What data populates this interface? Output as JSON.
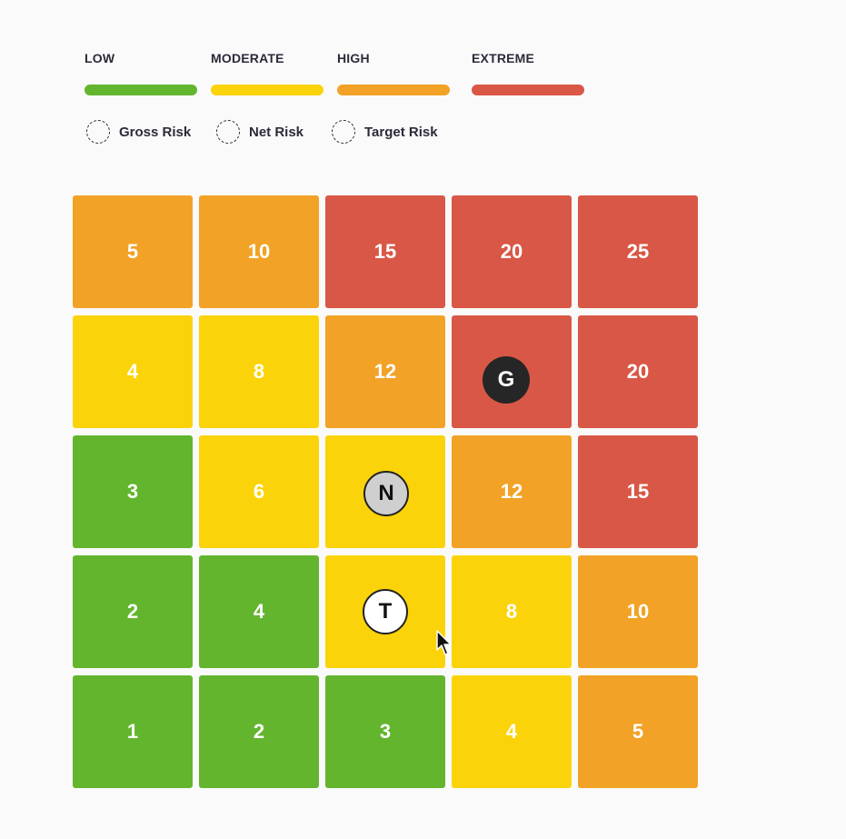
{
  "legend": {
    "levels": [
      {
        "label": "LOW",
        "color": "#63b52e"
      },
      {
        "label": "MODERATE",
        "color": "#fbd30a"
      },
      {
        "label": "HIGH",
        "color": "#f2a226"
      },
      {
        "label": "EXTREME",
        "color": "#d95746"
      }
    ],
    "markers": [
      {
        "label": "Gross Risk",
        "icon": "dashed-circle-icon"
      },
      {
        "label": "Net Risk",
        "icon": "dashed-circle-icon"
      },
      {
        "label": "Target Risk",
        "icon": "dashed-circle-icon"
      }
    ]
  },
  "matrix": {
    "rows": [
      [
        {
          "score": "5",
          "level": "high"
        },
        {
          "score": "10",
          "level": "high"
        },
        {
          "score": "15",
          "level": "extreme"
        },
        {
          "score": "20",
          "level": "extreme"
        },
        {
          "score": "25",
          "level": "extreme"
        }
      ],
      [
        {
          "score": "4",
          "level": "moderate"
        },
        {
          "score": "8",
          "level": "moderate"
        },
        {
          "score": "12",
          "level": "high"
        },
        {
          "score": "",
          "level": "extreme"
        },
        {
          "score": "20",
          "level": "extreme"
        }
      ],
      [
        {
          "score": "3",
          "level": "low"
        },
        {
          "score": "6",
          "level": "moderate"
        },
        {
          "score": "",
          "level": "moderate"
        },
        {
          "score": "12",
          "level": "high"
        },
        {
          "score": "15",
          "level": "extreme"
        }
      ],
      [
        {
          "score": "2",
          "level": "low"
        },
        {
          "score": "4",
          "level": "low"
        },
        {
          "score": "",
          "level": "moderate"
        },
        {
          "score": "8",
          "level": "moderate"
        },
        {
          "score": "10",
          "level": "high"
        }
      ],
      [
        {
          "score": "1",
          "level": "low"
        },
        {
          "score": "2",
          "level": "low"
        },
        {
          "score": "3",
          "level": "low"
        },
        {
          "score": "4",
          "level": "moderate"
        },
        {
          "score": "5",
          "level": "high"
        }
      ]
    ],
    "pins": {
      "gross": {
        "letter": "G",
        "row": 1,
        "col": 3
      },
      "net": {
        "letter": "N",
        "row": 2,
        "col": 2
      },
      "target": {
        "letter": "T",
        "row": 3,
        "col": 2
      }
    }
  }
}
